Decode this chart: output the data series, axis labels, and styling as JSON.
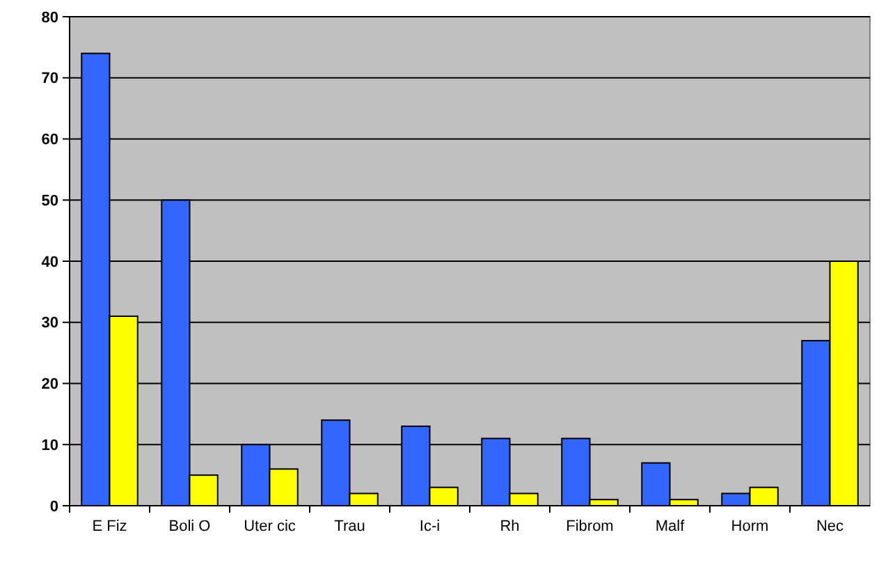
{
  "chart_data": {
    "type": "bar",
    "categories": [
      "E Fiz",
      "Boli O",
      "Uter cic",
      "Trau",
      "Ic-i",
      "Rh",
      "Fibrom",
      "Malf",
      "Horm",
      "Nec"
    ],
    "series": [
      {
        "color": "#3366ff",
        "values": [
          74,
          50,
          10,
          14,
          13,
          11,
          11,
          7,
          2,
          27
        ]
      },
      {
        "color": "#ffff00",
        "values": [
          31,
          5,
          6,
          2,
          3,
          2,
          1,
          1,
          3,
          40
        ]
      }
    ],
    "ylim": [
      0,
      80
    ],
    "yticks": [
      0,
      10,
      20,
      30,
      40,
      50,
      60,
      70,
      80
    ],
    "grid": "y"
  }
}
